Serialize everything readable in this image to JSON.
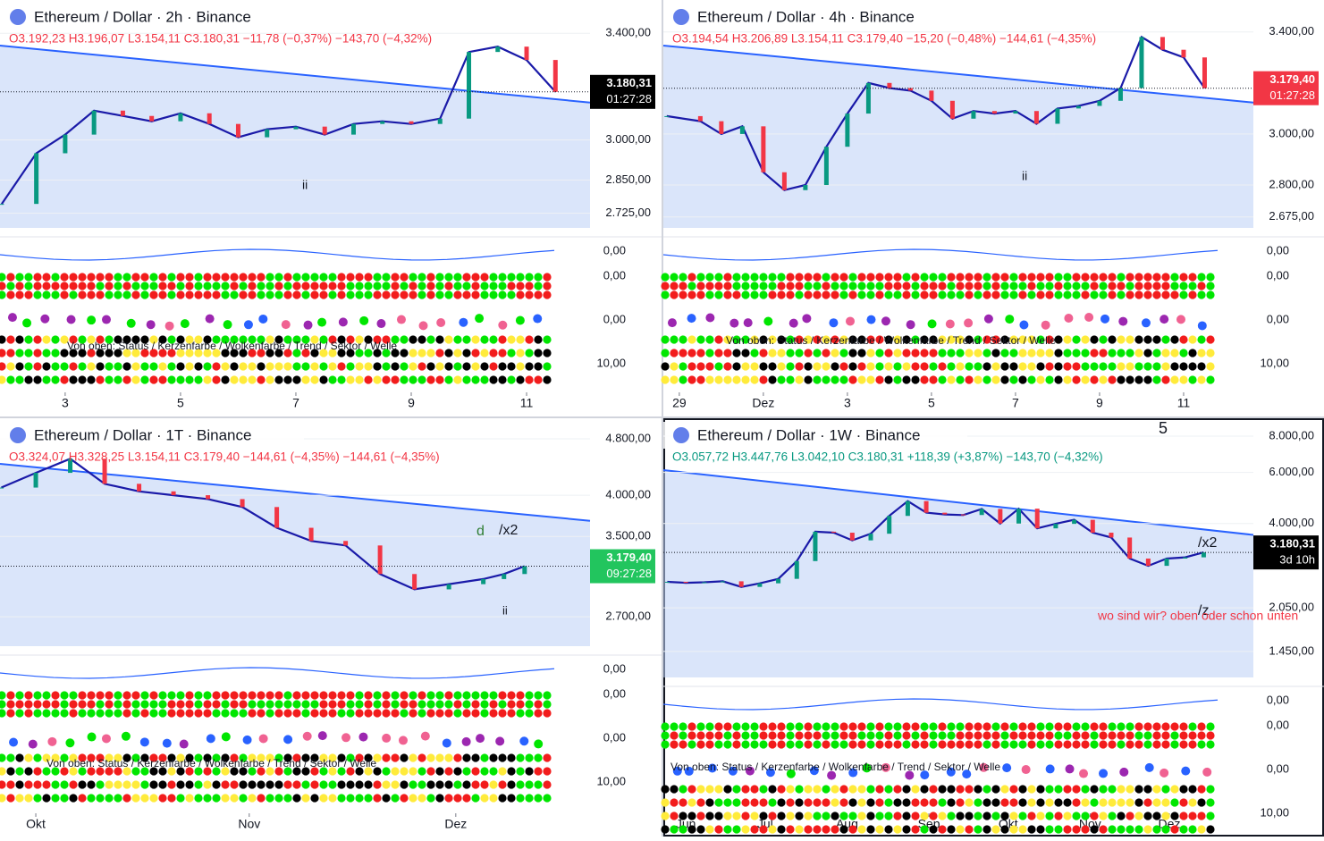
{
  "chart_data": [
    {
      "type": "line",
      "title": "Ethereum / Dollar · 2h · Binance",
      "ohlc": "O3.192,23 H3.196,07 L3.154,11 C3.180,31 −11,78 (−0,37%) −143,70 (−4,32%)",
      "x": [
        1.9,
        2.5,
        3,
        3.5,
        4,
        4.5,
        5,
        5.5,
        6,
        6.5,
        7,
        7.5,
        8,
        8.5,
        9,
        9.5,
        10,
        10.5,
        11,
        11.5
      ],
      "values": [
        2760,
        2950,
        3020,
        3110,
        3090,
        3070,
        3100,
        3060,
        3010,
        3040,
        3050,
        3020,
        3060,
        3070,
        3060,
        3080,
        3330,
        3350,
        3300,
        3180.31
      ],
      "color": "#1a1aa8",
      "xlim": [
        1.87,
        12.1
      ],
      "xticks": [
        3,
        5,
        7,
        9,
        11
      ],
      "ylim": [
        2670,
        3525
      ],
      "log": false,
      "yticks": [
        {
          "value": 3400,
          "label": "3.400,00"
        },
        {
          "value": 3000,
          "label": "3.000,00"
        },
        {
          "value": 2850,
          "label": "2.850,00"
        },
        {
          "value": 2725,
          "label": "2.725,00"
        }
      ],
      "last_label": "3.180,31",
      "countdown": "01:27:28",
      "badge_color": "#000000",
      "indicator_labels": [
        "0,00",
        "0,00",
        "0,00",
        "10,00"
      ],
      "annotations": [
        "ii",
        "Von oben: Status / Kerzenfarbe / Wolkenfarbe / Trend / Sektor / Welle"
      ]
    },
    {
      "type": "line",
      "title": "Ethereum / Dollar · 4h · Binance",
      "ohlc": "O3.194,54 H3.206,89 L3.154,11 C3.179,40 −15,20 (−0,48%) −144,61 (−4,35%)",
      "x": [
        -1.3,
        -0.5,
        0,
        0.5,
        1,
        1.5,
        2,
        2.5,
        3,
        3.5,
        4,
        4.5,
        5,
        5.5,
        6,
        6.5,
        7,
        7.5,
        8,
        8.5,
        9,
        9.5,
        10,
        10.5,
        11,
        11.5
      ],
      "values": [
        3070,
        3050,
        3000,
        3030,
        2850,
        2780,
        2800,
        2950,
        3080,
        3200,
        3180,
        3170,
        3130,
        3060,
        3090,
        3080,
        3090,
        3040,
        3100,
        3110,
        3130,
        3180,
        3380,
        3330,
        3300,
        3179.4
      ],
      "color": "#1a1aa8",
      "xlim": [
        -1.38,
        12.66
      ],
      "xticks": [
        {
          "value": -1,
          "label": "29"
        },
        {
          "value": 1,
          "label": "Dez"
        },
        3,
        5,
        7,
        9,
        11
      ],
      "ylim": [
        2632,
        3525
      ],
      "log": false,
      "yticks": [
        {
          "value": 3400,
          "label": "3.400,00"
        },
        {
          "value": 3000,
          "label": "3.000,00"
        },
        {
          "value": 2800,
          "label": "2.800,00"
        },
        {
          "value": 2675,
          "label": "2.675,00"
        }
      ],
      "last_label": "3.179,40",
      "countdown": "01:27:28",
      "badge_color": "#f23645",
      "indicator_labels": [
        "0,00",
        "0,00",
        "0,00",
        "10,00"
      ],
      "annotations": [
        "ii",
        "Von oben: Status / Kerzenfarbe / Wolkenfarbe / Trend / Sektor / Welle"
      ]
    },
    {
      "type": "line",
      "title": "Ethereum / Dollar · 1T · Binance",
      "ohlc": "O3.324,07 H3.328,25 L3.154,11 C3.179,40 −144,61 (−4,35%) −144,61 (−4,35%)",
      "x": [
        -5,
        0,
        5,
        10,
        15,
        20,
        25,
        30,
        35,
        40,
        45,
        50,
        55,
        60,
        65,
        68,
        71
      ],
      "values": [
        4100,
        4300,
        4500,
        4150,
        4050,
        4000,
        3950,
        3850,
        3600,
        3450,
        3400,
        3100,
        2950,
        3000,
        3050,
        3100,
        3179.4
      ],
      "color": "#1a1aa8",
      "xlim": [
        -5.2,
        80.5
      ],
      "xticks": [
        {
          "value": 0,
          "label": "Okt"
        },
        {
          "value": 31,
          "label": "Nov"
        },
        {
          "value": 61,
          "label": "Dez"
        }
      ],
      "ylim": [
        2455,
        5130
      ],
      "log": true,
      "yticks": [
        {
          "value": 4800,
          "label": "4.800,00"
        },
        {
          "value": 4000,
          "label": "4.000,00"
        },
        {
          "value": 3500,
          "label": "3.500,00"
        },
        {
          "value": 2700,
          "label": "2.700,00"
        }
      ],
      "last_label": "3.179,40",
      "countdown": "09:27:28",
      "badge_color": "#22c55e",
      "indicator_labels": [
        "0,00",
        "0,00",
        "0,00",
        "10,00"
      ],
      "annotations": [
        "d",
        "/x2",
        "ii",
        "Von oben: Status / Kerzenfarbe / Wolkenfarbe / Trend / Sektor / Welle"
      ]
    },
    {
      "type": "line",
      "title": "Ethereum / Dollar · 1W · Binance",
      "ohlc": "O3.057,72 H3.447,76 L3.042,10 C3.180,31 +118,39 (+3,87%) −143,70 (−4,32%)",
      "x": [
        -7,
        0,
        7,
        14,
        21,
        28,
        35,
        42,
        49,
        56,
        63,
        70,
        77,
        84,
        91,
        98,
        105,
        112,
        119,
        126,
        133,
        140,
        147,
        154,
        161,
        168,
        175,
        182,
        189,
        196
      ],
      "values": [
        2520,
        2500,
        2510,
        2530,
        2420,
        2490,
        2580,
        2970,
        3750,
        3720,
        3500,
        3690,
        4250,
        4780,
        4360,
        4300,
        4280,
        4490,
        4000,
        4500,
        3850,
        3990,
        4120,
        3720,
        3580,
        3030,
        2860,
        3030,
        3060,
        3180.31
      ],
      "color": "#1a1aa8",
      "xlim": [
        -8.5,
        214.8
      ],
      "xticks": [
        {
          "value": 0,
          "label": "Jun"
        },
        {
          "value": 30,
          "label": "Jul"
        },
        {
          "value": 61,
          "label": "Aug"
        },
        {
          "value": 92,
          "label": "Sep"
        },
        {
          "value": 122,
          "label": "Okt"
        },
        {
          "value": 153,
          "label": "Nov"
        },
        {
          "value": 183,
          "label": "Dez"
        }
      ],
      "ylim": [
        1180,
        9220
      ],
      "log": true,
      "yticks": [
        {
          "value": 8000,
          "label": "8.000,00"
        },
        {
          "value": 6000,
          "label": "6.000,00"
        },
        {
          "value": 4000,
          "label": "4.000,00"
        },
        {
          "value": 2050,
          "label": "2.050,00"
        },
        {
          "value": 1450,
          "label": "1.450,00"
        }
      ],
      "last_label": "3.180,31",
      "countdown": "3d 10h",
      "badge_color": "#000000",
      "indicator_labels": [
        "0,00",
        "0,00",
        "0,00",
        "10,00"
      ],
      "annotations": [
        "5",
        "/x2",
        "/z",
        "wo sind wir? oben oder schon unten",
        "Von oben: Status / Kerzenfarbe / Wolkenfarbe / Trend / Sektor / Welle"
      ]
    }
  ]
}
